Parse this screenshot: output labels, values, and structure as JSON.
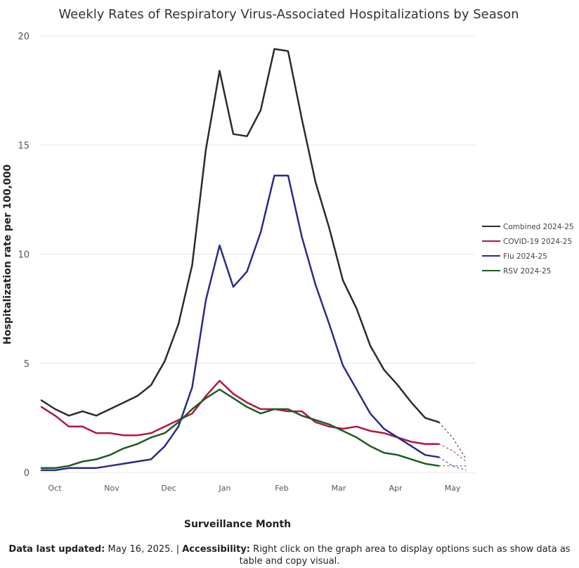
{
  "chart_data": {
    "type": "line",
    "title": "Weekly Rates of Respiratory Virus-Associated Hospitalizations by Season",
    "xlabel": "Surveillance Month",
    "ylabel": "Hospitalization rate per 100,000",
    "ylim": [
      0,
      20
    ],
    "yticks": [
      0,
      5,
      10,
      15,
      20
    ],
    "xtick_labels": [
      "Oct",
      "Nov",
      "Dec",
      "Jan",
      "Feb",
      "Mar",
      "Apr",
      "May"
    ],
    "grid": true,
    "legend_position": "right",
    "series": [
      {
        "name": "Combined 2024-25",
        "color": "#2b2b2b",
        "values": [
          3.3,
          2.9,
          2.6,
          2.8,
          2.6,
          2.9,
          3.2,
          3.5,
          4.0,
          5.1,
          6.8,
          9.5,
          14.8,
          18.4,
          15.5,
          15.4,
          16.6,
          19.4,
          19.3,
          16.2,
          13.3,
          11.2,
          8.8,
          7.5,
          5.8,
          4.7,
          4.0,
          3.2,
          2.5,
          2.3
        ],
        "projected": [
          1.6,
          0.6
        ]
      },
      {
        "name": "COVID-19 2024-25",
        "color": "#b0173f",
        "values": [
          3.0,
          2.6,
          2.1,
          2.1,
          1.8,
          1.8,
          1.7,
          1.7,
          1.8,
          2.1,
          2.4,
          2.7,
          3.5,
          4.2,
          3.6,
          3.2,
          2.9,
          2.9,
          2.8,
          2.8,
          2.3,
          2.1,
          2.0,
          2.1,
          1.9,
          1.8,
          1.6,
          1.4,
          1.3,
          1.3
        ],
        "projected": [
          1.0,
          0.5
        ]
      },
      {
        "name": "Flu 2024-25",
        "color": "#2a2a8c",
        "values": [
          0.1,
          0.1,
          0.2,
          0.2,
          0.2,
          0.3,
          0.4,
          0.5,
          0.6,
          1.2,
          2.1,
          3.9,
          7.9,
          10.4,
          8.5,
          9.2,
          11.0,
          13.6,
          13.6,
          10.8,
          8.6,
          6.8,
          4.9,
          3.8,
          2.7,
          2.0,
          1.6,
          1.2,
          0.8,
          0.7
        ],
        "projected": [
          0.3,
          0.1
        ]
      },
      {
        "name": "RSV 2024-25",
        "color": "#1f5a22",
        "values": [
          0.2,
          0.2,
          0.3,
          0.5,
          0.6,
          0.8,
          1.1,
          1.3,
          1.6,
          1.8,
          2.3,
          2.9,
          3.4,
          3.8,
          3.4,
          3.0,
          2.7,
          2.9,
          2.9,
          2.6,
          2.4,
          2.2,
          1.9,
          1.6,
          1.2,
          0.9,
          0.8,
          0.6,
          0.4,
          0.3
        ],
        "projected": [
          0.3,
          0.3
        ]
      }
    ]
  },
  "footer": {
    "updated_label": "Data last updated:",
    "updated_value": "May 16, 2025.",
    "separator": "|",
    "accessibility_label": "Accessibility:",
    "accessibility_text": "Right click on the graph area to display options such as show data as table and copy visual."
  }
}
